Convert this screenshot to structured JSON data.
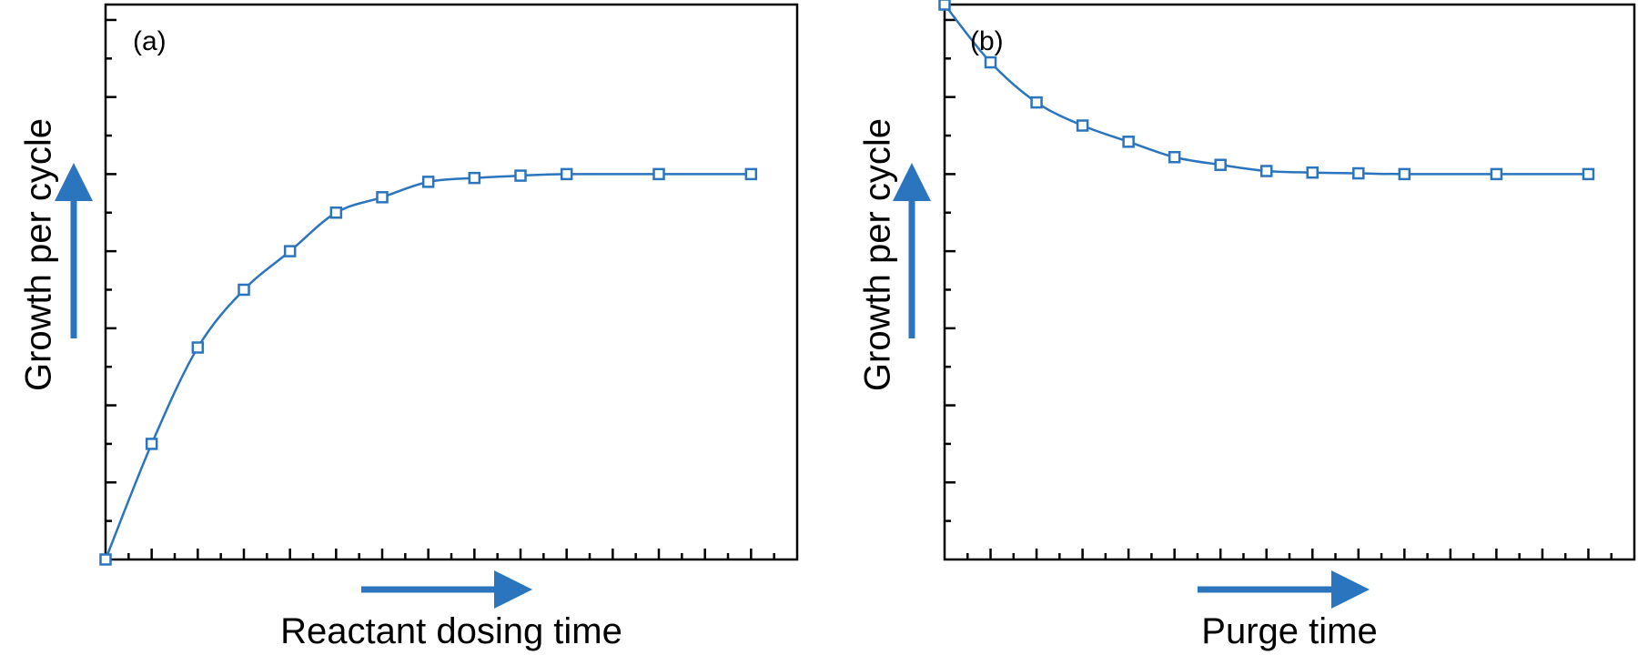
{
  "style": {
    "series_color": "#2a75be",
    "arrow_color": "#2a75be",
    "frame_color": "#000000",
    "marker": "open-square"
  },
  "chart_data": [
    {
      "type": "line",
      "panel_label": "(a)",
      "xlabel": "Reactant dosing time",
      "ylabel": "Growth per cycle",
      "xlim": [
        0,
        15
      ],
      "ylim": [
        0,
        7.2
      ],
      "x_ticks": [
        0,
        0.5,
        1,
        1.5,
        2,
        2.5,
        3,
        3.5,
        4,
        4.5,
        5,
        5.5,
        6,
        6.5,
        7,
        7.5,
        8,
        8.5,
        9,
        9.5,
        10,
        10.5,
        11,
        11.5,
        12,
        12.5,
        13,
        13.5,
        14,
        14.5,
        15
      ],
      "y_ticks": [
        0,
        0.5,
        1,
        1.5,
        2,
        2.5,
        3,
        3.5,
        4,
        4.5,
        5,
        5.5,
        6,
        6.5,
        7
      ],
      "y_major_ticks": [
        1,
        2,
        3,
        4,
        5,
        6,
        7
      ],
      "tick_labels_shown": false,
      "axis_arrows": true,
      "grid": false,
      "series": [
        {
          "x": [
            0,
            1,
            2,
            3,
            4,
            5,
            6,
            7,
            8,
            9,
            10,
            12,
            14
          ],
          "y": [
            0,
            1.5,
            2.75,
            3.5,
            4.0,
            4.5,
            4.7,
            4.9,
            4.95,
            4.98,
            5.0,
            5.0,
            5.0
          ]
        }
      ]
    },
    {
      "type": "line",
      "panel_label": "(b)",
      "xlabel": "Purge time",
      "ylabel": "Growth per cycle",
      "xlim": [
        0,
        15
      ],
      "ylim": [
        0,
        7.2
      ],
      "x_ticks": [
        0,
        0.5,
        1,
        1.5,
        2,
        2.5,
        3,
        3.5,
        4,
        4.5,
        5,
        5.5,
        6,
        6.5,
        7,
        7.5,
        8,
        8.5,
        9,
        9.5,
        10,
        10.5,
        11,
        11.5,
        12,
        12.5,
        13,
        13.5,
        14,
        14.5,
        15
      ],
      "y_ticks": [
        0,
        0.5,
        1,
        1.5,
        2,
        2.5,
        3,
        3.5,
        4,
        4.5,
        5,
        5.5,
        6,
        6.5,
        7
      ],
      "y_major_ticks": [
        1,
        2,
        3,
        4,
        5,
        6,
        7
      ],
      "tick_labels_shown": false,
      "axis_arrows": true,
      "grid": false,
      "series": [
        {
          "x": [
            0,
            1,
            2,
            3,
            4,
            5,
            6,
            7,
            8,
            9,
            10,
            12,
            14
          ],
          "y": [
            7.2,
            6.45,
            5.93,
            5.63,
            5.42,
            5.22,
            5.12,
            5.04,
            5.02,
            5.01,
            5.0,
            5.0,
            5.0
          ]
        }
      ]
    }
  ]
}
